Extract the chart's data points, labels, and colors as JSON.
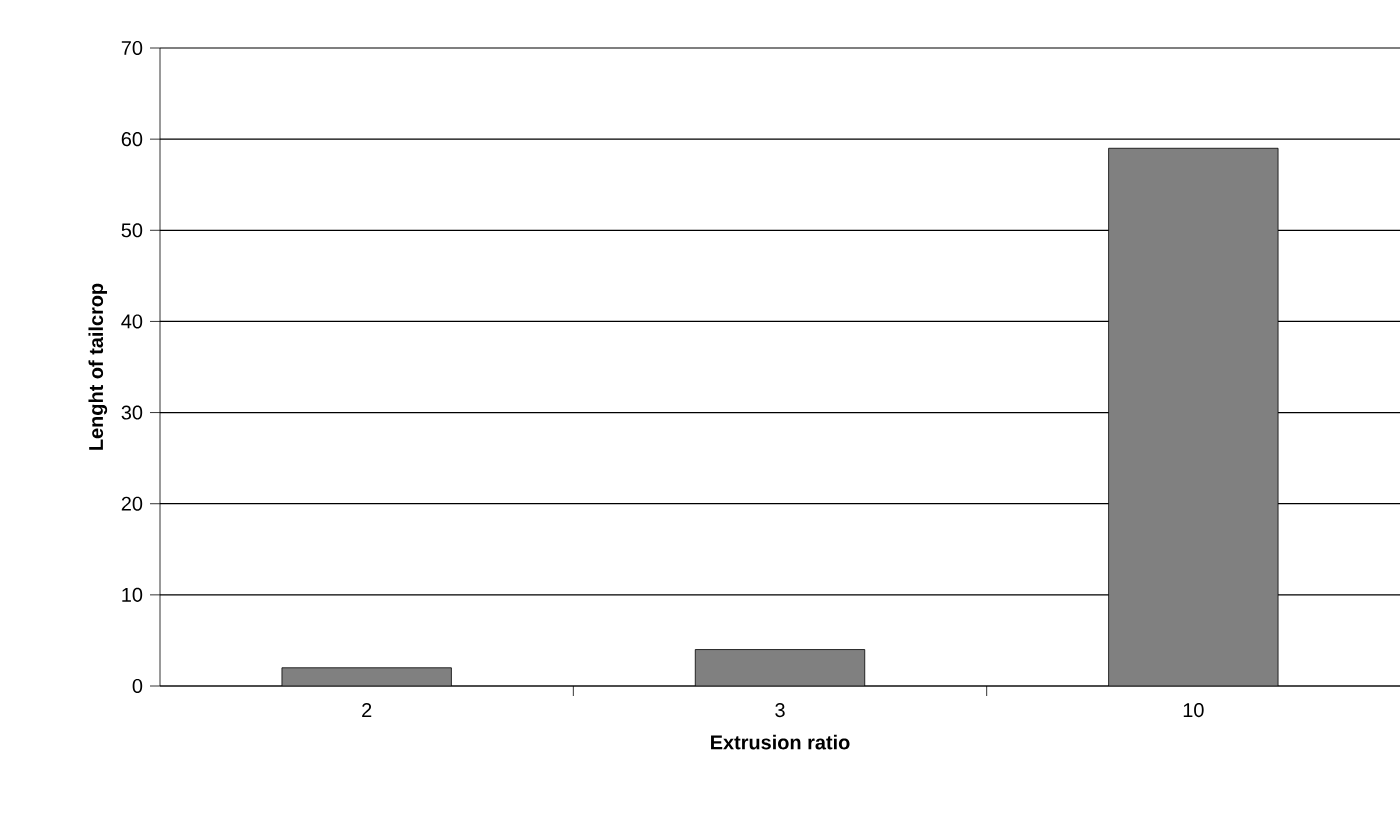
{
  "chart_data": {
    "type": "bar",
    "xlabel": "Extrusion ratio",
    "ylabel": "Lenght of tailcrop",
    "categories": [
      "2",
      "3",
      "10"
    ],
    "values": [
      2,
      4,
      59
    ],
    "color": "#808080",
    "ylim": [
      0,
      70
    ],
    "yticks": [
      0,
      10,
      20,
      30,
      40,
      50,
      60,
      70
    ],
    "grid": "y"
  }
}
